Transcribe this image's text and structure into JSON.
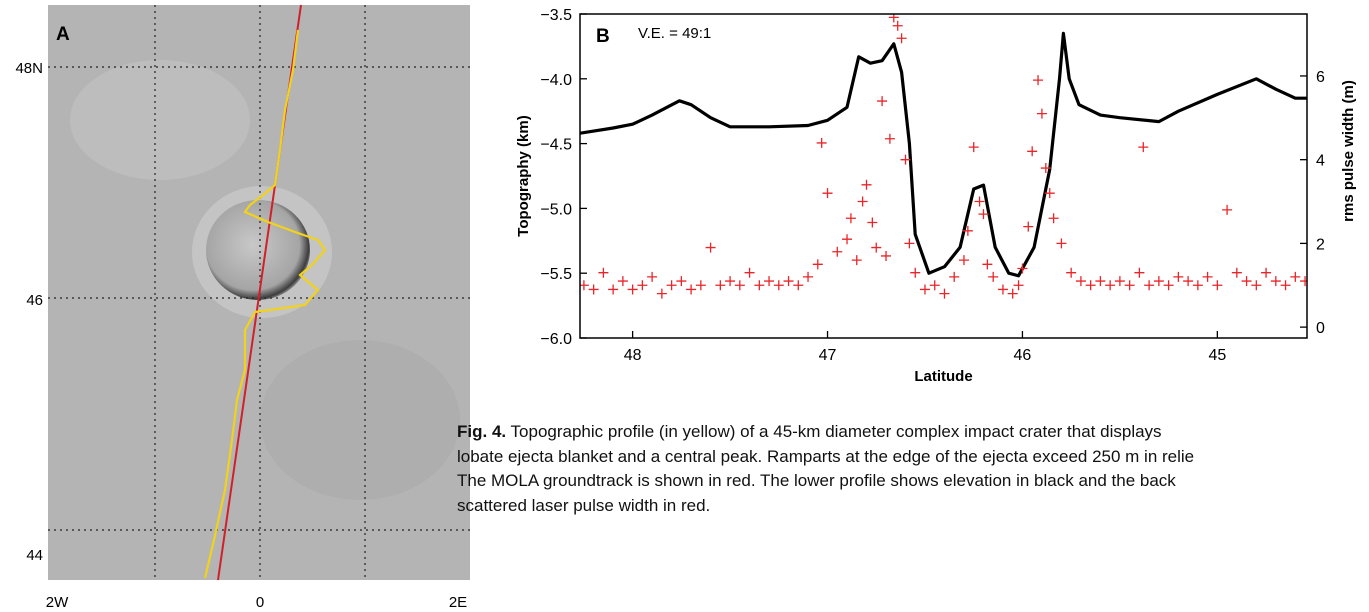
{
  "panel_a": {
    "letter": "A",
    "lat_labels": [
      "48N",
      "46",
      "44"
    ],
    "lon_labels": [
      "2W",
      "0",
      "2E"
    ]
  },
  "chart_data": {
    "type": "line",
    "panel_letter": "B",
    "annotation": "V.E. = 49:1",
    "x_label": "Latitude",
    "y_label": "Topography (km)",
    "y2_label": "rms pulse width (m)",
    "xlim": [
      48.27,
      44.54
    ],
    "xticks": [
      48,
      47,
      46,
      45
    ],
    "ylim": [
      -6.0,
      -3.5
    ],
    "yticks": [
      {
        "value": -6.0,
        "label": "−6.0"
      },
      {
        "value": -5.5,
        "label": "−5.5"
      },
      {
        "value": -5.0,
        "label": "−5.0"
      },
      {
        "value": -4.5,
        "label": "−4.5"
      },
      {
        "value": -4.0,
        "label": "−4.0"
      },
      {
        "value": -3.5,
        "label": "−3.5"
      }
    ],
    "y2lim": [
      -0.26,
      7.48
    ],
    "y2ticks": [
      0,
      2,
      4,
      6
    ],
    "series": [
      {
        "type": "line",
        "color": "#000000",
        "axis": "y",
        "x": [
          48.27,
          48.1,
          48.0,
          47.9,
          47.76,
          47.7,
          47.6,
          47.5,
          47.3,
          47.1,
          47.0,
          46.9,
          46.84,
          46.78,
          46.72,
          46.66,
          46.62,
          46.58,
          46.55,
          46.48,
          46.4,
          46.32,
          46.25,
          46.2,
          46.14,
          46.07,
          46.02,
          45.94,
          45.86,
          45.81,
          45.79,
          45.76,
          45.71,
          45.6,
          45.5,
          45.3,
          45.2,
          45.0,
          44.8,
          44.7,
          44.6,
          44.54
        ],
        "values": [
          -4.42,
          -4.38,
          -4.35,
          -4.28,
          -4.17,
          -4.2,
          -4.3,
          -4.37,
          -4.37,
          -4.36,
          -4.32,
          -4.22,
          -3.83,
          -3.88,
          -3.86,
          -3.73,
          -3.95,
          -4.5,
          -5.2,
          -5.5,
          -5.45,
          -5.3,
          -4.85,
          -4.82,
          -5.3,
          -5.5,
          -5.52,
          -5.3,
          -4.7,
          -4.0,
          -3.65,
          -4.0,
          -4.2,
          -4.28,
          -4.3,
          -4.33,
          -4.25,
          -4.12,
          -4.0,
          -4.08,
          -4.15,
          -4.15
        ]
      },
      {
        "type": "scatter",
        "color": "#e8262a",
        "axis": "y2",
        "x": [
          48.25,
          48.2,
          48.15,
          48.1,
          48.05,
          48.0,
          47.95,
          47.9,
          47.85,
          47.8,
          47.75,
          47.7,
          47.65,
          47.6,
          47.55,
          47.5,
          47.45,
          47.4,
          47.35,
          47.3,
          47.25,
          47.2,
          47.15,
          47.1,
          47.05,
          47.03,
          47.0,
          46.95,
          46.9,
          46.88,
          46.85,
          46.82,
          46.8,
          46.77,
          46.75,
          46.72,
          46.7,
          46.68,
          46.66,
          46.64,
          46.62,
          46.6,
          46.58,
          46.55,
          46.5,
          46.45,
          46.4,
          46.35,
          46.3,
          46.28,
          46.25,
          46.22,
          46.2,
          46.18,
          46.15,
          46.1,
          46.05,
          46.02,
          46.0,
          45.97,
          45.95,
          45.92,
          45.9,
          45.88,
          45.86,
          45.84,
          45.8,
          45.75,
          45.7,
          45.65,
          45.6,
          45.55,
          45.5,
          45.45,
          45.4,
          45.38,
          45.35,
          45.3,
          45.25,
          45.2,
          45.15,
          45.1,
          45.05,
          45.0,
          44.95,
          44.9,
          44.85,
          44.8,
          44.75,
          44.7,
          44.65,
          44.6,
          44.55
        ],
        "values": [
          1.0,
          0.9,
          1.3,
          0.9,
          1.1,
          0.9,
          1.0,
          1.2,
          0.8,
          1.0,
          1.1,
          0.9,
          1.0,
          1.9,
          1.0,
          1.1,
          1.0,
          1.3,
          1.0,
          1.1,
          1.0,
          1.1,
          1.0,
          1.2,
          1.5,
          4.4,
          3.2,
          1.8,
          2.1,
          2.6,
          1.6,
          3.0,
          3.4,
          2.5,
          1.9,
          5.4,
          1.7,
          4.5,
          7.4,
          7.2,
          6.9,
          4.0,
          2.0,
          1.3,
          0.9,
          1.0,
          0.8,
          1.2,
          1.6,
          2.3,
          4.3,
          3.0,
          2.7,
          1.5,
          1.2,
          0.9,
          0.8,
          1.0,
          1.4,
          2.4,
          4.2,
          5.9,
          5.1,
          3.8,
          3.2,
          2.6,
          2.0,
          1.3,
          1.1,
          1.0,
          1.1,
          1.0,
          1.1,
          1.0,
          1.3,
          4.3,
          1.0,
          1.1,
          1.0,
          1.2,
          1.1,
          1.0,
          1.2,
          1.0,
          2.8,
          1.3,
          1.1,
          1.0,
          1.3,
          1.1,
          1.0,
          1.2,
          1.1
        ]
      }
    ]
  },
  "caption": {
    "label": "Fig. 4.",
    "lines": [
      "Topographic profile (in yellow) of a 45-km diameter complex impact crater that displays",
      "lobate ejecta blanket and a central peak. Ramparts at the edge of the ejecta exceed 250 m in relie",
      "The MOLA groundtrack is shown in red. The lower profile shows elevation in black and the back",
      "scattered laser pulse width in red."
    ]
  }
}
